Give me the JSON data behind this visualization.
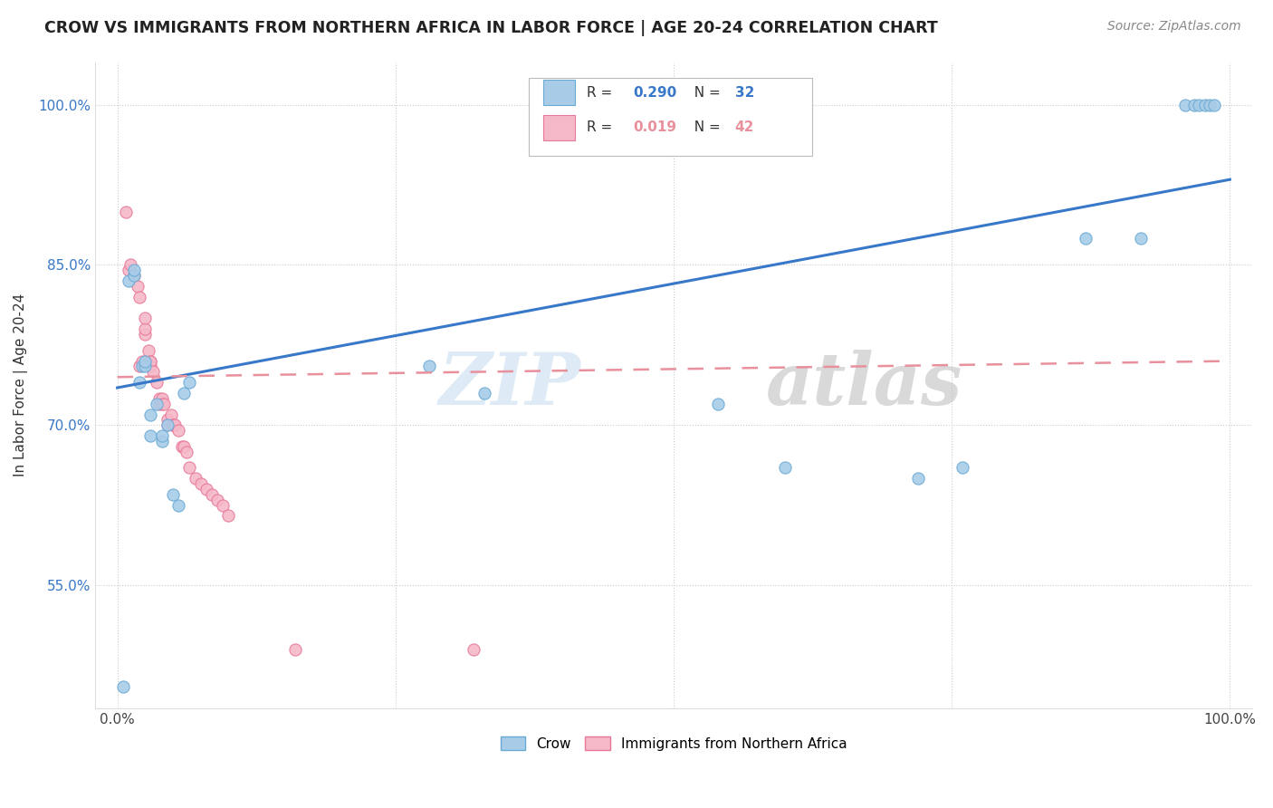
{
  "title": "CROW VS IMMIGRANTS FROM NORTHERN AFRICA IN LABOR FORCE | AGE 20-24 CORRELATION CHART",
  "source": "Source: ZipAtlas.com",
  "ylabel": "In Labor Force | Age 20-24",
  "xlim": [
    -0.02,
    1.02
  ],
  "ylim": [
    0.435,
    1.04
  ],
  "xtick_positions": [
    0.0,
    0.25,
    0.5,
    0.75,
    1.0
  ],
  "xticklabels": [
    "0.0%",
    "",
    "",
    "",
    "100.0%"
  ],
  "ytick_positions": [
    0.55,
    0.7,
    0.85,
    1.0
  ],
  "ytick_labels": [
    "55.0%",
    "70.0%",
    "85.0%",
    "100.0%"
  ],
  "crow_color": "#a8cce8",
  "immig_color": "#f5b8c8",
  "crow_edge": "#6aaad4",
  "immig_edge": "#e87898",
  "trend_blue": "#3878c8",
  "trend_pink": "#e8909c",
  "R_crow": 0.29,
  "N_crow": 32,
  "R_immig": 0.019,
  "N_immig": 42,
  "watermark": "ZIPatlas",
  "crow_x": [
    0.005,
    0.01,
    0.015,
    0.015,
    0.02,
    0.022,
    0.025,
    0.025,
    0.03,
    0.03,
    0.035,
    0.04,
    0.04,
    0.045,
    0.05,
    0.055,
    0.06,
    0.065,
    0.28,
    0.33,
    0.54,
    0.6,
    0.72,
    0.76,
    0.87,
    0.92,
    0.96,
    0.968,
    0.972,
    0.978,
    0.982,
    0.986
  ],
  "crow_y": [
    0.455,
    0.835,
    0.84,
    0.845,
    0.74,
    0.755,
    0.755,
    0.76,
    0.69,
    0.71,
    0.72,
    0.685,
    0.69,
    0.7,
    0.635,
    0.625,
    0.73,
    0.74,
    0.755,
    0.73,
    0.72,
    0.66,
    0.65,
    0.66,
    0.875,
    0.875,
    1.0,
    1.0,
    1.0,
    1.0,
    1.0,
    1.0
  ],
  "immig_x": [
    0.008,
    0.01,
    0.012,
    0.015,
    0.018,
    0.02,
    0.02,
    0.022,
    0.025,
    0.025,
    0.025,
    0.028,
    0.03,
    0.03,
    0.03,
    0.032,
    0.035,
    0.038,
    0.038,
    0.04,
    0.04,
    0.042,
    0.045,
    0.045,
    0.048,
    0.05,
    0.05,
    0.052,
    0.055,
    0.058,
    0.06,
    0.062,
    0.065,
    0.07,
    0.075,
    0.08,
    0.085,
    0.09,
    0.095,
    0.1,
    0.16,
    0.32
  ],
  "immig_y": [
    0.9,
    0.845,
    0.85,
    0.84,
    0.83,
    0.82,
    0.755,
    0.76,
    0.785,
    0.79,
    0.8,
    0.77,
    0.76,
    0.755,
    0.76,
    0.75,
    0.74,
    0.72,
    0.725,
    0.725,
    0.72,
    0.72,
    0.705,
    0.7,
    0.71,
    0.7,
    0.7,
    0.7,
    0.695,
    0.68,
    0.68,
    0.675,
    0.66,
    0.65,
    0.645,
    0.64,
    0.635,
    0.63,
    0.625,
    0.615,
    0.49,
    0.49
  ],
  "trend_blue_x0": 0.0,
  "trend_blue_y0": 0.735,
  "trend_blue_x1": 1.0,
  "trend_blue_y1": 0.93,
  "trend_pink_x0": 0.0,
  "trend_pink_y0": 0.745,
  "trend_pink_x1": 1.0,
  "trend_pink_y1": 0.76
}
